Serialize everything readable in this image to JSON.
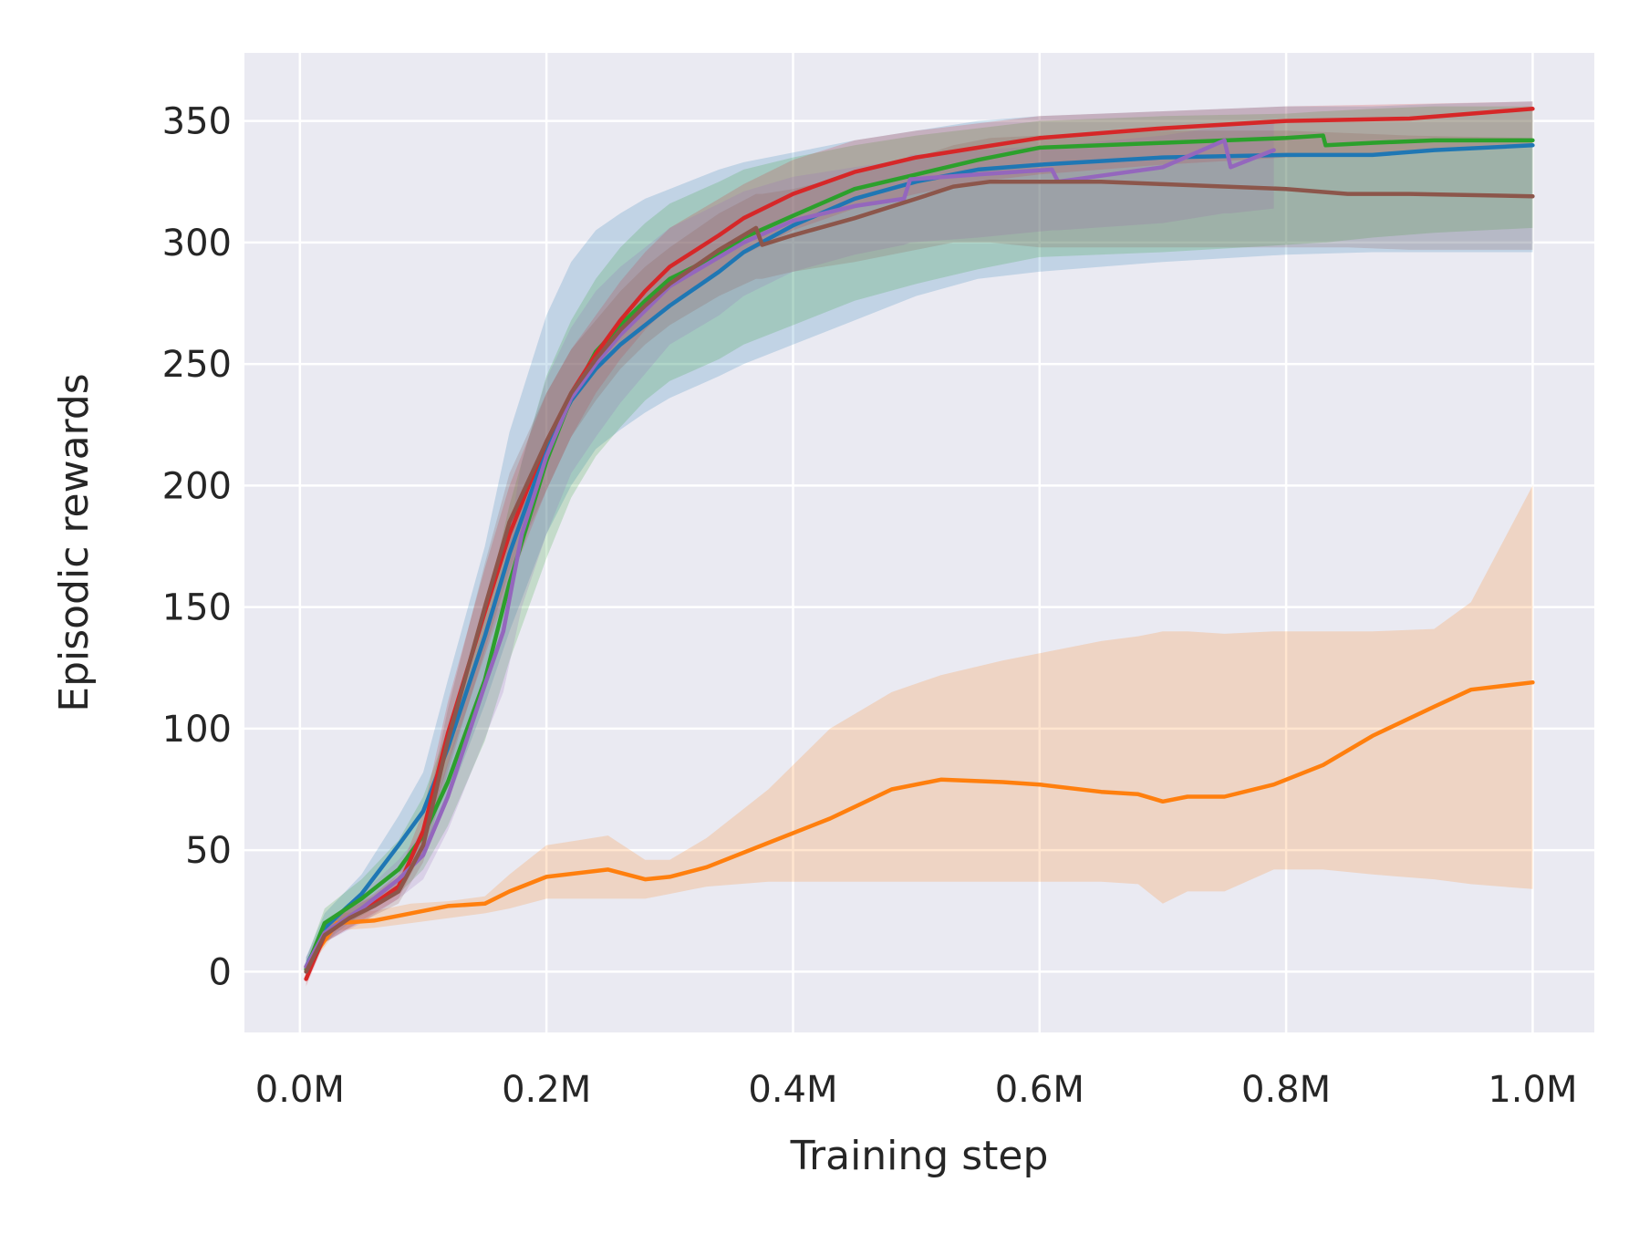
{
  "chart_data": {
    "type": "line",
    "title": "",
    "xlabel": "Training step",
    "ylabel": "Episodic rewards",
    "xlim": [
      -0.045,
      1.05
    ],
    "ylim": [
      -25,
      378
    ],
    "xticks": [
      0.0,
      0.2,
      0.4,
      0.6,
      0.8,
      1.0
    ],
    "xtick_labels": [
      "0.0M",
      "0.2M",
      "0.4M",
      "0.6M",
      "0.8M",
      "1.0M"
    ],
    "yticks": [
      0,
      50,
      100,
      150,
      200,
      250,
      300,
      350
    ],
    "ytick_labels": [
      "0",
      "50",
      "100",
      "150",
      "200",
      "250",
      "300",
      "350"
    ],
    "grid": true,
    "background": "#eaeaf2",
    "series": [
      {
        "name": "blue",
        "color": "#1f77b4",
        "x": [
          0.005,
          0.02,
          0.05,
          0.08,
          0.1,
          0.12,
          0.15,
          0.17,
          0.2,
          0.22,
          0.24,
          0.26,
          0.28,
          0.3,
          0.34,
          0.36,
          0.4,
          0.45,
          0.5,
          0.55,
          0.6,
          0.7,
          0.8,
          0.87,
          0.92,
          1.0
        ],
        "y": [
          2,
          18,
          32,
          52,
          66,
          92,
          138,
          172,
          215,
          235,
          248,
          258,
          266,
          274,
          288,
          296,
          307,
          318,
          325,
          330,
          332,
          335,
          336,
          336,
          338,
          340
        ],
        "lower": [
          -2,
          12,
          24,
          40,
          50,
          70,
          110,
          140,
          180,
          200,
          215,
          223,
          230,
          236,
          245,
          250,
          258,
          268,
          278,
          285,
          288,
          292,
          295,
          296,
          296,
          296
        ],
        "upper": [
          6,
          24,
          40,
          64,
          82,
          120,
          175,
          222,
          270,
          292,
          305,
          312,
          318,
          322,
          330,
          333,
          337,
          342,
          346,
          350,
          352,
          354,
          356,
          356,
          357,
          358
        ]
      },
      {
        "name": "orange",
        "color": "#ff7f0e",
        "x": [
          0.005,
          0.03,
          0.06,
          0.09,
          0.12,
          0.15,
          0.17,
          0.2,
          0.25,
          0.28,
          0.3,
          0.33,
          0.38,
          0.43,
          0.48,
          0.52,
          0.57,
          0.6,
          0.65,
          0.68,
          0.7,
          0.72,
          0.75,
          0.79,
          0.83,
          0.87,
          0.92,
          0.95,
          1.0
        ],
        "y": [
          2,
          20,
          21,
          24,
          27,
          28,
          33,
          39,
          42,
          38,
          39,
          43,
          53,
          63,
          75,
          79,
          78,
          77,
          74,
          73,
          70,
          72,
          72,
          77,
          85,
          97,
          109,
          116,
          119
        ],
        "lower": [
          0,
          17,
          18,
          20,
          22,
          24,
          26,
          30,
          30,
          30,
          32,
          35,
          37,
          37,
          37,
          37,
          37,
          37,
          37,
          36,
          28,
          33,
          33,
          42,
          42,
          40,
          38,
          36,
          34
        ],
        "upper": [
          4,
          24,
          25,
          28,
          29,
          31,
          40,
          52,
          56,
          46,
          46,
          55,
          75,
          100,
          115,
          122,
          128,
          131,
          136,
          138,
          140,
          140,
          139,
          140,
          140,
          140,
          141,
          152,
          200
        ]
      },
      {
        "name": "green",
        "color": "#2ca02c",
        "x": [
          0.005,
          0.02,
          0.05,
          0.08,
          0.1,
          0.12,
          0.15,
          0.17,
          0.2,
          0.22,
          0.24,
          0.26,
          0.28,
          0.3,
          0.34,
          0.36,
          0.4,
          0.45,
          0.5,
          0.55,
          0.6,
          0.7,
          0.8,
          0.83,
          0.832,
          0.87,
          0.92,
          1.0
        ],
        "y": [
          1,
          20,
          30,
          42,
          56,
          78,
          120,
          160,
          210,
          236,
          255,
          266,
          276,
          285,
          295,
          302,
          311,
          322,
          328,
          334,
          339,
          341,
          343,
          344,
          340,
          341,
          342,
          342
        ],
        "lower": [
          -3,
          15,
          23,
          32,
          42,
          60,
          95,
          128,
          170,
          195,
          212,
          224,
          235,
          243,
          252,
          258,
          266,
          276,
          283,
          289,
          294,
          296,
          299,
          300,
          300,
          302,
          304,
          306
        ],
        "upper": [
          5,
          26,
          38,
          54,
          72,
          100,
          148,
          192,
          245,
          268,
          285,
          298,
          308,
          316,
          325,
          330,
          335,
          340,
          344,
          347,
          350,
          352,
          353,
          354,
          354,
          355,
          356,
          356
        ]
      },
      {
        "name": "red",
        "color": "#d62728",
        "x": [
          0.005,
          0.02,
          0.04,
          0.06,
          0.08,
          0.1,
          0.12,
          0.15,
          0.17,
          0.2,
          0.22,
          0.24,
          0.26,
          0.28,
          0.3,
          0.34,
          0.36,
          0.4,
          0.45,
          0.5,
          0.55,
          0.6,
          0.7,
          0.8,
          0.9,
          1.0
        ],
        "y": [
          -3,
          15,
          22,
          28,
          35,
          58,
          98,
          148,
          180,
          218,
          238,
          254,
          268,
          280,
          290,
          303,
          310,
          320,
          329,
          335,
          339,
          343,
          347,
          350,
          351,
          355
        ],
        "lower": [
          -6,
          12,
          18,
          24,
          30,
          50,
          85,
          130,
          160,
          198,
          220,
          238,
          252,
          264,
          274,
          288,
          295,
          305,
          314,
          320,
          325,
          328,
          332,
          335,
          337,
          340
        ],
        "upper": [
          0,
          18,
          26,
          32,
          40,
          66,
          111,
          166,
          200,
          238,
          256,
          270,
          284,
          296,
          306,
          318,
          324,
          334,
          342,
          346,
          349,
          352,
          354,
          356,
          357,
          358
        ]
      },
      {
        "name": "purple",
        "color": "#9467bd",
        "x": [
          0.005,
          0.02,
          0.05,
          0.08,
          0.1,
          0.12,
          0.15,
          0.165,
          0.18,
          0.2,
          0.22,
          0.24,
          0.26,
          0.28,
          0.3,
          0.34,
          0.36,
          0.4,
          0.45,
          0.49,
          0.495,
          0.55,
          0.61,
          0.615,
          0.7,
          0.75,
          0.755,
          0.79
        ],
        "y": [
          2,
          16,
          26,
          38,
          48,
          72,
          118,
          140,
          180,
          212,
          236,
          250,
          262,
          272,
          282,
          294,
          300,
          309,
          315,
          318,
          326,
          328,
          330,
          325,
          331,
          342,
          331,
          338
        ],
        "lower": [
          -2,
          12,
          20,
          30,
          38,
          58,
          96,
          115,
          150,
          180,
          205,
          220,
          234,
          246,
          258,
          270,
          278,
          288,
          295,
          299,
          300,
          302,
          305,
          305,
          308,
          312,
          312,
          314
        ],
        "upper": [
          6,
          20,
          32,
          46,
          58,
          86,
          140,
          165,
          210,
          244,
          265,
          280,
          290,
          298,
          306,
          316,
          321,
          327,
          331,
          334,
          336,
          338,
          340,
          340,
          344,
          348,
          348,
          350
        ]
      },
      {
        "name": "brown",
        "color": "#8c564b",
        "x": [
          0.005,
          0.02,
          0.04,
          0.06,
          0.08,
          0.1,
          0.12,
          0.15,
          0.17,
          0.2,
          0.22,
          0.24,
          0.26,
          0.28,
          0.3,
          0.34,
          0.37,
          0.375,
          0.4,
          0.45,
          0.5,
          0.53,
          0.56,
          0.6,
          0.65,
          0.7,
          0.8,
          0.85,
          0.9,
          1.0
        ],
        "y": [
          0,
          15,
          22,
          27,
          33,
          52,
          95,
          150,
          185,
          218,
          238,
          252,
          264,
          274,
          283,
          297,
          306,
          299,
          303,
          310,
          318,
          323,
          325,
          325,
          325,
          324,
          322,
          320,
          320,
          319
        ],
        "lower": [
          -3,
          12,
          18,
          23,
          28,
          45,
          82,
          132,
          165,
          198,
          220,
          235,
          248,
          258,
          266,
          278,
          285,
          285,
          288,
          292,
          297,
          300,
          300,
          298,
          298,
          298,
          298,
          298,
          297,
          297
        ],
        "upper": [
          3,
          18,
          26,
          31,
          38,
          59,
          108,
          168,
          205,
          238,
          256,
          268,
          280,
          290,
          298,
          312,
          320,
          320,
          322,
          328,
          335,
          340,
          343,
          344,
          345,
          346,
          346,
          345,
          344,
          343
        ]
      }
    ]
  }
}
